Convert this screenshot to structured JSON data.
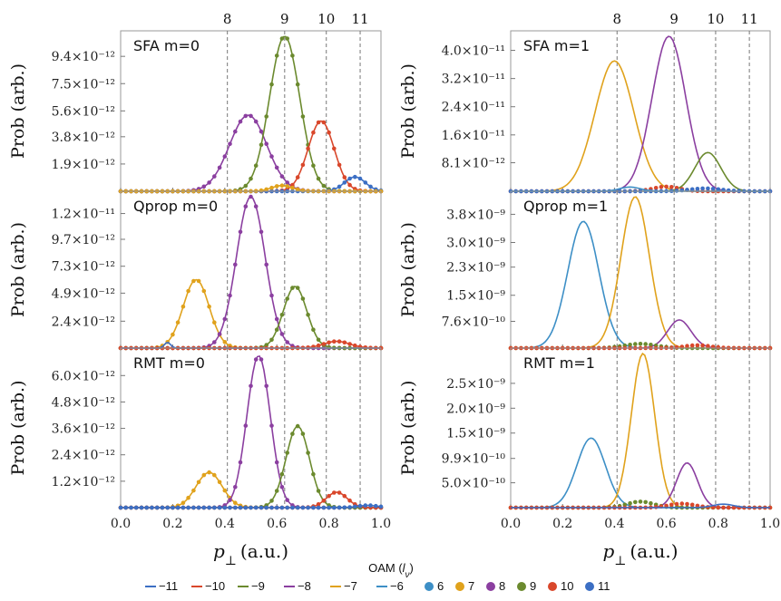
{
  "chart_data": {
    "type": "line",
    "x_label": "p_⊥ (a.u.)",
    "y_label": "Prob (arb.)",
    "xlim": [
      0.0,
      1.0
    ],
    "x_tick_labels": [
      "0.0",
      "0.2",
      "0.4",
      "0.6",
      "0.8",
      "1.0"
    ],
    "vertical_lines": [
      {
        "label": "8",
        "x": 0.41
      },
      {
        "label": "9",
        "x": 0.63
      },
      {
        "label": "10",
        "x": 0.79
      },
      {
        "label": "11",
        "x": 0.92
      }
    ],
    "legend": {
      "title": "OAM (l_ν)",
      "line_entries": [
        {
          "label": "−11",
          "color": "#3c6fc4"
        },
        {
          "label": "−10",
          "color": "#d9472b"
        },
        {
          "label": "−9",
          "color": "#6b8a2e"
        },
        {
          "label": "−8",
          "color": "#8b3fa0"
        },
        {
          "label": "−7",
          "color": "#e0a21c"
        },
        {
          "label": "−6",
          "color": "#3d8fc6"
        }
      ],
      "dot_entries": [
        {
          "label": "6",
          "color": "#3d8fc6"
        },
        {
          "label": "7",
          "color": "#e0a21c"
        },
        {
          "label": "8",
          "color": "#8b3fa0"
        },
        {
          "label": "9",
          "color": "#6b8a2e"
        },
        {
          "label": "10",
          "color": "#d9472b"
        },
        {
          "label": "11",
          "color": "#3c6fc4"
        }
      ]
    },
    "panels": [
      {
        "title": "SFA m=0",
        "ymax": 1.08e-11,
        "y_ticks": [
          {
            "v": 1.9e-12,
            "label": "1.9×10⁻¹²"
          },
          {
            "v": 3.8e-12,
            "label": "3.8×10⁻¹²"
          },
          {
            "v": 5.6e-12,
            "label": "5.6×10⁻¹²"
          },
          {
            "v": 7.5e-12,
            "label": "7.5×10⁻¹²"
          },
          {
            "v": 9.4e-12,
            "label": "9.4×10⁻¹²"
          }
        ],
        "series": [
          {
            "oam": "-8",
            "color": "#8b3fa0",
            "style": "line+dots",
            "x_peak": 0.49,
            "width": 0.072,
            "peak": 5.3e-12
          },
          {
            "oam": "-9",
            "color": "#6b8a2e",
            "style": "line+dots",
            "x_peak": 0.63,
            "width": 0.058,
            "peak": 1.08e-11
          },
          {
            "oam": "-10",
            "color": "#d9472b",
            "style": "line+dots",
            "x_peak": 0.77,
            "width": 0.05,
            "peak": 4.9e-12
          },
          {
            "oam": "-11",
            "color": "#3c6fc4",
            "style": "line+dots",
            "x_peak": 0.9,
            "width": 0.04,
            "peak": 1e-12
          },
          {
            "oam": "-7",
            "color": "#e0a21c",
            "style": "line+dots",
            "x_peak": 0.62,
            "width": 0.04,
            "peak": 4e-13
          }
        ]
      },
      {
        "title": "SFA m=1",
        "ymax": 4.4e-11,
        "y_ticks": [
          {
            "v": 8.1e-12,
            "label": "8.1×10⁻¹²"
          },
          {
            "v": 1.6e-11,
            "label": "1.6×10⁻¹¹"
          },
          {
            "v": 2.4e-11,
            "label": "2.4×10⁻¹¹"
          },
          {
            "v": 3.2e-11,
            "label": "3.2×10⁻¹¹"
          },
          {
            "v": 4e-11,
            "label": "4.0×10⁻¹¹"
          }
        ],
        "series": [
          {
            "oam": "7",
            "color": "#e0a21c",
            "style": "line",
            "x_peak": 0.4,
            "width": 0.075,
            "peak": 3.7e-11
          },
          {
            "oam": "8",
            "color": "#8b3fa0",
            "style": "line",
            "x_peak": 0.61,
            "width": 0.065,
            "peak": 4.4e-11
          },
          {
            "oam": "9",
            "color": "#6b8a2e",
            "style": "line",
            "x_peak": 0.76,
            "width": 0.05,
            "peak": 1.1e-11
          },
          {
            "oam": "10",
            "color": "#d9472b",
            "style": "dots",
            "x_peak": 0.6,
            "width": 0.05,
            "peak": 1.3e-12
          },
          {
            "oam": "11",
            "color": "#3c6fc4",
            "style": "dots",
            "x_peak": 0.75,
            "width": 0.06,
            "peak": 8e-13
          },
          {
            "oam": "6",
            "color": "#3d8fc6",
            "style": "line",
            "x_peak": 0.46,
            "width": 0.04,
            "peak": 1.2e-12
          }
        ]
      },
      {
        "title": "Qprop m=0",
        "ymax": 1.35e-11,
        "y_ticks": [
          {
            "v": 2.4e-12,
            "label": "2.4×10⁻¹²"
          },
          {
            "v": 4.9e-12,
            "label": "4.9×10⁻¹²"
          },
          {
            "v": 7.3e-12,
            "label": "7.3×10⁻¹²"
          },
          {
            "v": 9.7e-12,
            "label": "9.7×10⁻¹²"
          },
          {
            "v": 1.2e-11,
            "label": "1.2×10⁻¹¹"
          }
        ],
        "series": [
          {
            "oam": "-7",
            "color": "#e0a21c",
            "style": "line+dots",
            "x_peak": 0.29,
            "width": 0.05,
            "peak": 6.1e-12
          },
          {
            "oam": "-8",
            "color": "#8b3fa0",
            "style": "line+dots",
            "x_peak": 0.5,
            "width": 0.055,
            "peak": 1.35e-11
          },
          {
            "oam": "-9",
            "color": "#6b8a2e",
            "style": "line+dots",
            "x_peak": 0.67,
            "width": 0.045,
            "peak": 5.5e-12
          },
          {
            "oam": "-10",
            "color": "#d9472b",
            "style": "line+dots",
            "x_peak": 0.83,
            "width": 0.05,
            "peak": 6e-13
          },
          {
            "oam": "-11",
            "color": "#3c6fc4",
            "style": "line",
            "x_peak": 0.18,
            "width": 0.012,
            "peak": 5e-13
          }
        ]
      },
      {
        "title": "Qprop m=1",
        "ymax": 4.3e-09,
        "y_ticks": [
          {
            "v": 7.6e-10,
            "label": "7.6×10⁻¹⁰"
          },
          {
            "v": 1.5e-09,
            "label": "1.5×10⁻⁹"
          },
          {
            "v": 2.3e-09,
            "label": "2.3×10⁻⁹"
          },
          {
            "v": 3e-09,
            "label": "3.0×10⁻⁹"
          },
          {
            "v": 3.8e-09,
            "label": "3.8×10⁻⁹"
          }
        ],
        "series": [
          {
            "oam": "6",
            "color": "#3d8fc6",
            "style": "line",
            "x_peak": 0.28,
            "width": 0.06,
            "peak": 3.6e-09
          },
          {
            "oam": "7",
            "color": "#e0a21c",
            "style": "line",
            "x_peak": 0.48,
            "width": 0.055,
            "peak": 4.3e-09
          },
          {
            "oam": "8",
            "color": "#8b3fa0",
            "style": "line",
            "x_peak": 0.65,
            "width": 0.045,
            "peak": 8e-10
          },
          {
            "oam": "9",
            "color": "#6b8a2e",
            "style": "dots",
            "x_peak": 0.5,
            "width": 0.06,
            "peak": 1.2e-10
          },
          {
            "oam": "10",
            "color": "#d9472b",
            "style": "dots",
            "x_peak": 0.72,
            "width": 0.05,
            "peak": 8e-11
          }
        ]
      },
      {
        "title": "RMT m=0",
        "ymax": 7e-12,
        "y_ticks": [
          {
            "v": 1.2e-12,
            "label": "1.2×10⁻¹²"
          },
          {
            "v": 2.4e-12,
            "label": "2.4×10⁻¹²"
          },
          {
            "v": 3.6e-12,
            "label": "3.6×10⁻¹²"
          },
          {
            "v": 4.8e-12,
            "label": "4.8×10⁻¹²"
          },
          {
            "v": 6e-12,
            "label": "6.0×10⁻¹²"
          }
        ],
        "series": [
          {
            "oam": "-7",
            "color": "#e0a21c",
            "style": "line+dots",
            "x_peak": 0.34,
            "width": 0.05,
            "peak": 1.6e-12
          },
          {
            "oam": "-8",
            "color": "#8b3fa0",
            "style": "line+dots",
            "x_peak": 0.53,
            "width": 0.045,
            "peak": 6.9e-12
          },
          {
            "oam": "-9",
            "color": "#6b8a2e",
            "style": "line+dots",
            "x_peak": 0.68,
            "width": 0.045,
            "peak": 3.7e-12
          },
          {
            "oam": "-10",
            "color": "#d9472b",
            "style": "line+dots",
            "x_peak": 0.83,
            "width": 0.04,
            "peak": 7e-13
          },
          {
            "oam": "-11",
            "color": "#3c6fc4",
            "style": "line+dots",
            "x_peak": 0.95,
            "width": 0.04,
            "peak": 1e-13
          }
        ]
      },
      {
        "title": "RMT m=1",
        "ymax": 3.1e-09,
        "y_ticks": [
          {
            "v": 5e-10,
            "label": "5.0×10⁻¹⁰"
          },
          {
            "v": 9.9e-10,
            "label": "9.9×10⁻¹⁰"
          },
          {
            "v": 1.5e-09,
            "label": "1.5×10⁻⁹"
          },
          {
            "v": 2e-09,
            "label": "2.0×10⁻⁹"
          },
          {
            "v": 2.5e-09,
            "label": "2.5×10⁻⁹"
          }
        ],
        "series": [
          {
            "oam": "6",
            "color": "#3d8fc6",
            "style": "line",
            "x_peak": 0.31,
            "width": 0.055,
            "peak": 1.4e-09
          },
          {
            "oam": "7",
            "color": "#e0a21c",
            "style": "line",
            "x_peak": 0.51,
            "width": 0.045,
            "peak": 3.1e-09
          },
          {
            "oam": "8",
            "color": "#8b3fa0",
            "style": "line",
            "x_peak": 0.68,
            "width": 0.04,
            "peak": 9e-10
          },
          {
            "oam": "9",
            "color": "#6b8a2e",
            "style": "dots",
            "x_peak": 0.5,
            "width": 0.05,
            "peak": 1.2e-10
          },
          {
            "oam": "10",
            "color": "#d9472b",
            "style": "dots",
            "x_peak": 0.66,
            "width": 0.05,
            "peak": 8e-11
          },
          {
            "oam": "11",
            "color": "#3c6fc4",
            "style": "line",
            "x_peak": 0.82,
            "width": 0.04,
            "peak": 7e-11
          }
        ]
      }
    ]
  }
}
